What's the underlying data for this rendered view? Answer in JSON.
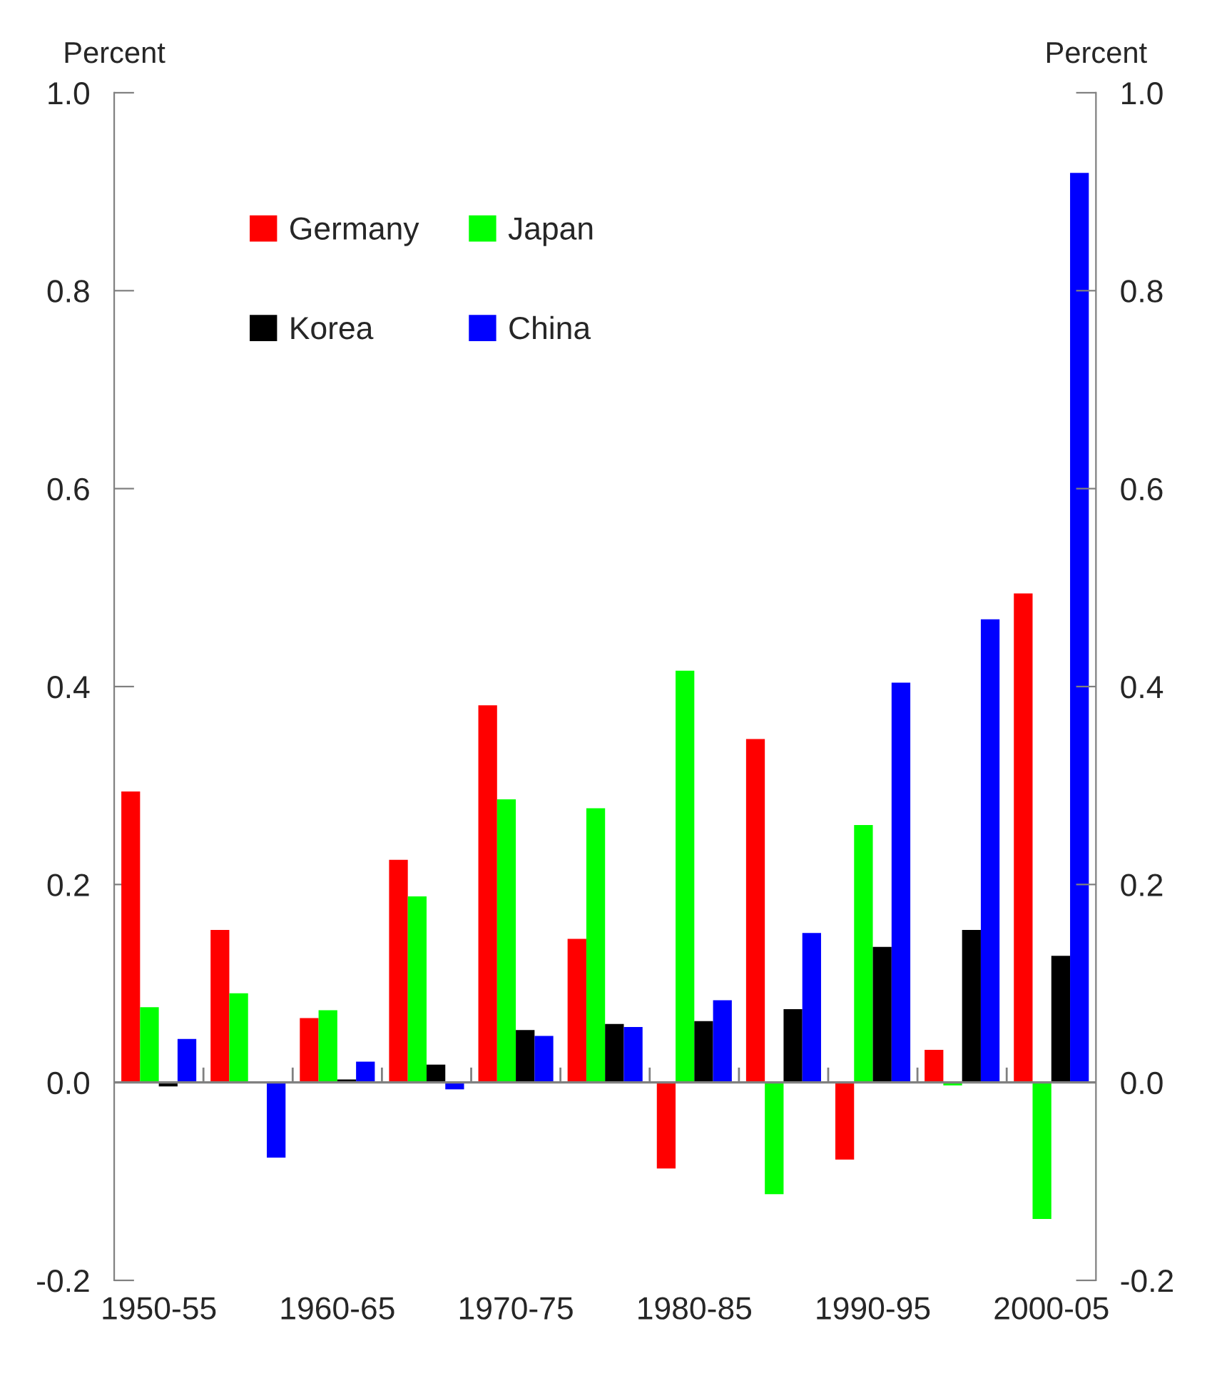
{
  "chart_data": {
    "type": "bar",
    "categories": [
      "1950-55",
      null,
      "1960-65",
      null,
      "1970-75",
      null,
      "1980-85",
      null,
      "1990-95",
      null,
      "2000-05"
    ],
    "series": [
      {
        "name": "Germany",
        "color": "#ff0000",
        "values": [
          0.294,
          0.154,
          0.065,
          0.225,
          0.381,
          0.145,
          -0.087,
          0.347,
          -0.078,
          0.033,
          0.494
        ]
      },
      {
        "name": "Japan",
        "color": "#00ff00",
        "values": [
          0.076,
          0.09,
          0.073,
          0.188,
          0.286,
          0.277,
          0.416,
          -0.113,
          0.26,
          -0.003,
          -0.138
        ]
      },
      {
        "name": "Korea",
        "color": "#000000",
        "values": [
          -0.004,
          0.0,
          0.003,
          0.018,
          0.053,
          0.059,
          0.062,
          0.074,
          0.137,
          0.154,
          0.128
        ]
      },
      {
        "name": "China",
        "color": "#0000ff",
        "values": [
          0.044,
          -0.076,
          0.021,
          -0.007,
          0.047,
          0.056,
          0.083,
          0.151,
          0.404,
          0.468,
          0.919
        ]
      }
    ],
    "ylabel": "Percent",
    "y2label": "Percent",
    "ylim": [
      -0.2,
      1.0
    ],
    "yticks": [
      {
        "value": -0.2,
        "label": "-0.2"
      },
      {
        "value": 0.0,
        "label": "0.0"
      },
      {
        "value": 0.2,
        "label": "0.2"
      },
      {
        "value": 0.4,
        "label": "0.4"
      },
      {
        "value": 0.6,
        "label": "0.6"
      },
      {
        "value": 0.8,
        "label": "0.8"
      },
      {
        "value": 1.0,
        "label": "1.0"
      }
    ],
    "y2lim": [
      -0.2,
      1.0
    ],
    "y2ticks": [
      {
        "value": -0.2,
        "label": "-0.2"
      },
      {
        "value": 0.0,
        "label": "0.0"
      },
      {
        "value": 0.2,
        "label": "0.2"
      },
      {
        "value": 0.4,
        "label": "0.4"
      },
      {
        "value": 0.6,
        "label": "0.6"
      },
      {
        "value": 0.8,
        "label": "0.8"
      },
      {
        "value": 1.0,
        "label": "1.0"
      }
    ],
    "legend": "top left"
  }
}
